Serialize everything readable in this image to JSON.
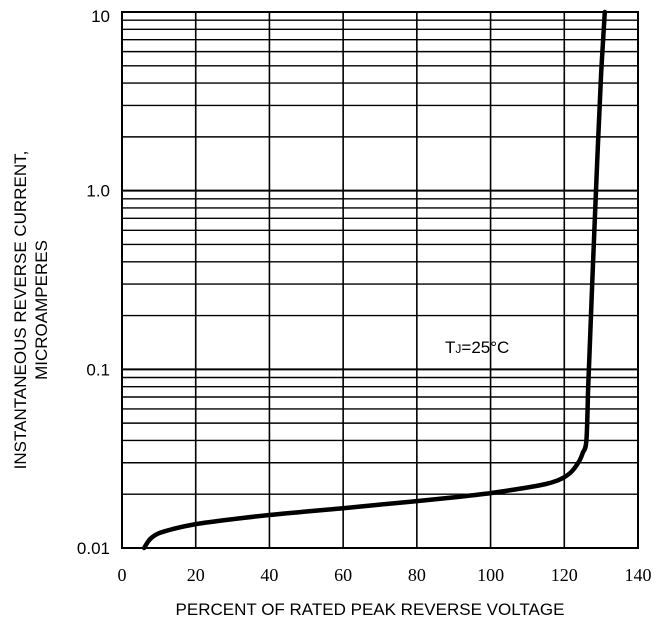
{
  "chart_data": {
    "type": "line",
    "title": "",
    "xlabel": "PERCENT OF RATED PEAK REVERSE VOLTAGE",
    "ylabel_line1": "INSTANTANEOUS  REVERSE CURRENT,",
    "ylabel_line2": "MICROAMPERES",
    "x_range": [
      0,
      140
    ],
    "y_range": [
      0.01,
      10
    ],
    "y_scale": "log",
    "grid": true,
    "x_ticks": [
      0,
      20,
      40,
      60,
      80,
      100,
      120,
      140
    ],
    "x_tick_labels": [
      "0",
      "20",
      "40",
      "60",
      "80",
      "100",
      "120",
      "140"
    ],
    "y_ticks": [
      0.01,
      0.1,
      1.0,
      10
    ],
    "y_tick_labels": [
      "0.01",
      "0.1",
      "1.0",
      "10"
    ],
    "annotation": {
      "main": "T",
      "sub": "J",
      "rest": "=25°C"
    },
    "series": [
      {
        "x": [
          6,
          7,
          8,
          10,
          14,
          20,
          30,
          40,
          50,
          60,
          70,
          80,
          90,
          100,
          110,
          115,
          118,
          120,
          122,
          124,
          125,
          126,
          126.5,
          127,
          128,
          129,
          130,
          131
        ],
        "y": [
          0.01,
          0.0108,
          0.0114,
          0.0121,
          0.0128,
          0.0136,
          0.0145,
          0.0153,
          0.016,
          0.0167,
          0.0175,
          0.0183,
          0.0192,
          0.0203,
          0.0218,
          0.0228,
          0.0238,
          0.0249,
          0.0268,
          0.0305,
          0.034,
          0.04,
          0.08,
          0.15,
          0.5,
          1.6,
          4.5,
          10
        ]
      }
    ]
  }
}
